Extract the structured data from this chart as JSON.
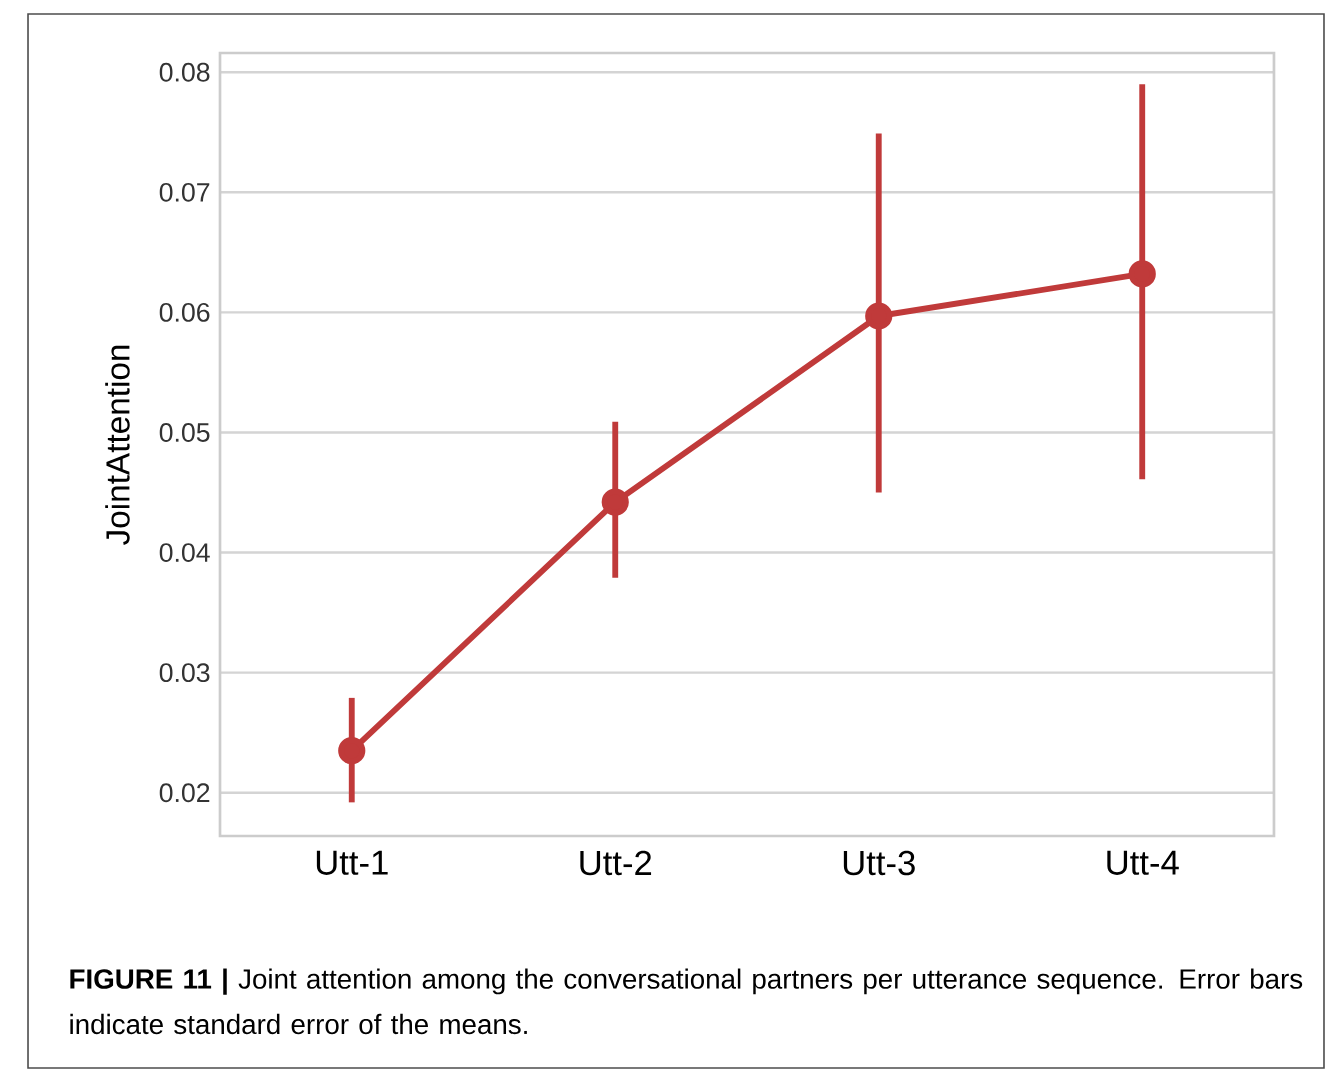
{
  "chart_data": {
    "type": "line",
    "ylabel": "JointAttention",
    "categories": [
      "Utt-1",
      "Utt-2",
      "Utt-3",
      "Utt-4"
    ],
    "series": [
      {
        "color": "#c03a3a",
        "values": [
          0.0235,
          0.0442,
          0.0597,
          0.0632
        ],
        "errors": [
          [
            0.0192,
            0.0279
          ],
          [
            0.0379,
            0.0509
          ],
          [
            0.045,
            0.0749
          ],
          [
            0.0461,
            0.079
          ]
        ]
      }
    ],
    "ylim": [
      0.0164,
      0.0816
    ],
    "yticks": [
      0.02,
      0.03,
      0.04,
      0.05,
      0.06,
      0.07,
      0.08
    ],
    "grid": "y",
    "marker": "circle",
    "line_style": "solid",
    "annotations": [
      "**FIGURE 11 |** Joint attention among the conversational partners per utterance sequence. Error bars indicate standard error of the means."
    ]
  }
}
